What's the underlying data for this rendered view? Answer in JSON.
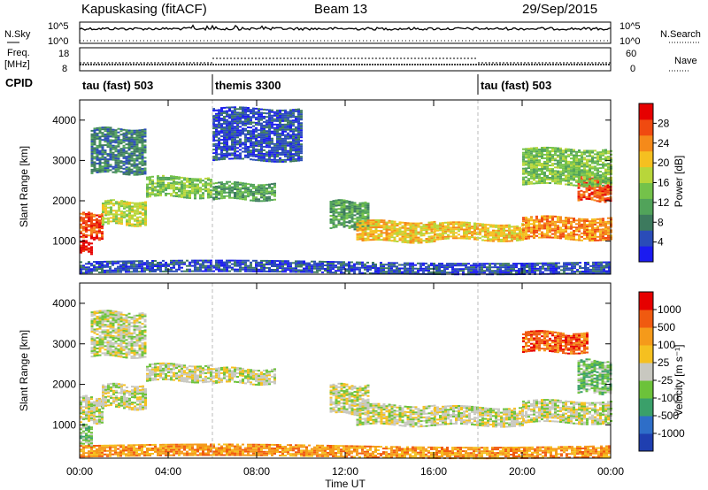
{
  "header": {
    "station": "Kapuskasing (fitACF)",
    "beam": "Beam 13",
    "date": "29/Sep/2015"
  },
  "nsky_panel": {
    "left_label": "N.Sky",
    "right_label": "N.Search",
    "left_ticks": [
      "10^5",
      "10^0"
    ],
    "right_ticks": [
      "10^5",
      "10^0"
    ]
  },
  "freq_panel": {
    "left_label_1": "Freq.",
    "left_label_2": "[MHz]",
    "right_label": "Nave",
    "left_ticks": [
      "18",
      "8"
    ],
    "right_ticks": [
      "60",
      "0"
    ]
  },
  "cpid": {
    "label": "CPID",
    "segments": [
      {
        "name": "tau (fast) 503",
        "start": 0,
        "end": 6
      },
      {
        "name": "themis 3300",
        "start": 6,
        "end": 18
      },
      {
        "name": "tau (fast) 503",
        "start": 18,
        "end": 24
      }
    ]
  },
  "colors": {
    "power": [
      "#1b1bf0",
      "#2a4cb8",
      "#3d7a5e",
      "#51a35a",
      "#74c24a",
      "#b8d63a",
      "#f5c020",
      "#f58a1a",
      "#f04a10",
      "#e60000"
    ],
    "velocity": [
      "#1f3fb0",
      "#2e6ec8",
      "#3aa06a",
      "#6cc23a",
      "#c8c8c0",
      "#f5c020",
      "#f59a1a",
      "#f05a10",
      "#e60000"
    ]
  },
  "chart_data": [
    {
      "type": "heatmap",
      "title": "Power",
      "ylabel": "Slant Range [km]",
      "colorbar_label": "Power [dB]",
      "colorbar_ticks": [
        "28",
        "24",
        "20",
        "16",
        "12",
        "8",
        "4"
      ],
      "xlim": [
        0,
        24
      ],
      "ylim": [
        180,
        4500
      ],
      "yticks": [
        "1000",
        "2000",
        "3000",
        "4000"
      ],
      "xtick_labels": [
        "00:00",
        "04:00",
        "08:00",
        "12:00",
        "16:00",
        "20:00",
        "00:00"
      ],
      "bands": [
        {
          "x": [
            0.0,
            1.0
          ],
          "y": [
            1050,
            1700
          ],
          "level": 8
        },
        {
          "x": [
            0.0,
            0.6
          ],
          "y": [
            700,
            1000
          ],
          "level": 9
        },
        {
          "x": [
            1.0,
            3.0
          ],
          "y": [
            1400,
            2000
          ],
          "level": 5
        },
        {
          "x": [
            3.0,
            6.0
          ],
          "y": [
            2100,
            2600
          ],
          "level": 4
        },
        {
          "x": [
            6.0,
            8.8
          ],
          "y": [
            2050,
            2450
          ],
          "level": 3
        },
        {
          "x": [
            11.3,
            13.0
          ],
          "y": [
            1300,
            2000
          ],
          "level": 3
        },
        {
          "x": [
            12.5,
            16.0
          ],
          "y": [
            1000,
            1500
          ],
          "level": 6
        },
        {
          "x": [
            16.0,
            20.0
          ],
          "y": [
            1050,
            1450
          ],
          "level": 6
        },
        {
          "x": [
            20.0,
            24.0
          ],
          "y": [
            1050,
            1600
          ],
          "level": 7
        },
        {
          "x": [
            22.5,
            24.0
          ],
          "y": [
            2000,
            2600
          ],
          "level": 8
        },
        {
          "x": [
            0.5,
            3.0
          ],
          "y": [
            2700,
            3800
          ],
          "level": 2
        },
        {
          "x": [
            6.0,
            10.0
          ],
          "y": [
            3000,
            4300
          ],
          "level": 1
        },
        {
          "x": [
            0.0,
            24.0
          ],
          "y": [
            200,
            500
          ],
          "level": 1
        },
        {
          "x": [
            20.0,
            24.0
          ],
          "y": [
            2400,
            3300
          ],
          "level": 4
        }
      ]
    },
    {
      "type": "heatmap",
      "title": "Velocity",
      "ylabel": "Slant Range [km]",
      "colorbar_label": "Velocity [m s⁻¹]",
      "colorbar_ticks": [
        "1000",
        "500",
        "100",
        "25",
        "-25",
        "-100",
        "-500",
        "-1000"
      ],
      "xlabel": "Time UT",
      "xlim": [
        0,
        24
      ],
      "ylim": [
        180,
        4500
      ],
      "yticks": [
        "1000",
        "2000",
        "3000",
        "4000"
      ],
      "xtick_labels": [
        "00:00",
        "04:00",
        "08:00",
        "12:00",
        "16:00",
        "20:00",
        "00:00"
      ],
      "bands": [
        {
          "x": [
            0.0,
            1.0
          ],
          "y": [
            1050,
            1700
          ],
          "level": 4
        },
        {
          "x": [
            0.0,
            0.6
          ],
          "y": [
            500,
            1000
          ],
          "level": 3
        },
        {
          "x": [
            1.0,
            3.0
          ],
          "y": [
            1400,
            2000
          ],
          "level": 4
        },
        {
          "x": [
            3.0,
            6.0
          ],
          "y": [
            2100,
            2500
          ],
          "level": 4
        },
        {
          "x": [
            6.0,
            8.8
          ],
          "y": [
            2050,
            2400
          ],
          "level": 4
        },
        {
          "x": [
            11.3,
            13.0
          ],
          "y": [
            1300,
            2000
          ],
          "level": 4
        },
        {
          "x": [
            12.5,
            16.0
          ],
          "y": [
            1000,
            1500
          ],
          "level": 4
        },
        {
          "x": [
            16.0,
            20.0
          ],
          "y": [
            1000,
            1450
          ],
          "level": 4
        },
        {
          "x": [
            20.0,
            24.0
          ],
          "y": [
            1050,
            1600
          ],
          "level": 4
        },
        {
          "x": [
            22.5,
            24.0
          ],
          "y": [
            1800,
            2600
          ],
          "level": 3
        },
        {
          "x": [
            0.5,
            3.0
          ],
          "y": [
            2700,
            3800
          ],
          "level": 4
        },
        {
          "x": [
            0.0,
            24.0
          ],
          "y": [
            200,
            500
          ],
          "level": 6
        },
        {
          "x": [
            20.0,
            23.0
          ],
          "y": [
            2800,
            3300
          ],
          "level": 7
        }
      ]
    }
  ]
}
